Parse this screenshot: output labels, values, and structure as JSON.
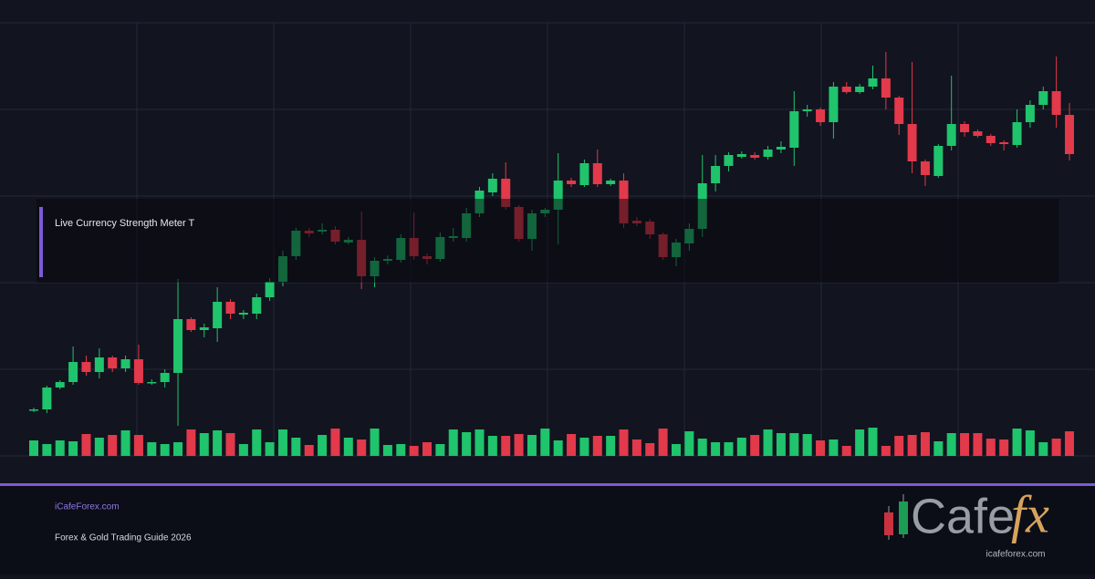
{
  "chart_data": {
    "type": "candlestick",
    "open": [
      50,
      51,
      75,
      81,
      103,
      92,
      108,
      96,
      106,
      80,
      81,
      91,
      150,
      138,
      140,
      169,
      155,
      156,
      174,
      191,
      219,
      247,
      246,
      248,
      234,
      237,
      197,
      214,
      215,
      239,
      219,
      216,
      239,
      239,
      266,
      289,
      304,
      273,
      238,
      266,
      270,
      302,
      297,
      321,
      298,
      302,
      258,
      257,
      243,
      218,
      233,
      249,
      299,
      318,
      328,
      330,
      328,
      336,
      338,
      378,
      380,
      366,
      405,
      399,
      405,
      414,
      393,
      364,
      323,
      307,
      340,
      364,
      356,
      351,
      344,
      341,
      366,
      385,
      400,
      374
    ],
    "high": [
      53,
      77,
      83,
      120,
      110,
      118,
      110,
      110,
      122,
      84,
      95,
      194,
      152,
      145,
      185,
      172,
      160,
      178,
      195,
      225,
      250,
      250,
      255,
      252,
      240,
      268,
      218,
      220,
      243,
      267,
      222,
      245,
      250,
      272,
      295,
      310,
      322,
      275,
      270,
      272,
      332,
      305,
      325,
      336,
      304,
      310,
      262,
      260,
      245,
      238,
      255,
      330,
      330,
      333,
      334,
      333,
      340,
      345,
      400,
      385,
      382,
      410,
      410,
      408,
      428,
      443,
      395,
      432,
      325,
      342,
      417,
      367,
      358,
      353,
      346,
      380,
      390,
      405,
      438,
      387
    ],
    "low": [
      48,
      47,
      73,
      78,
      88,
      85,
      92,
      92,
      78,
      78,
      75,
      33,
      136,
      130,
      125,
      150,
      150,
      150,
      170,
      186,
      215,
      240,
      243,
      232,
      232,
      183,
      185,
      210,
      212,
      215,
      210,
      213,
      235,
      235,
      262,
      285,
      270,
      235,
      225,
      262,
      232,
      295,
      295,
      295,
      296,
      250,
      252,
      238,
      215,
      208,
      225,
      240,
      290,
      312,
      326,
      325,
      325,
      332,
      318,
      372,
      362,
      348,
      397,
      397,
      402,
      380,
      352,
      310,
      296,
      305,
      335,
      350,
      349,
      340,
      335,
      338,
      360,
      380,
      360,
      324
    ],
    "close": [
      51,
      75,
      81,
      103,
      92,
      108,
      96,
      106,
      80,
      81,
      91,
      150,
      138,
      141,
      169,
      156,
      157,
      174,
      191,
      219,
      247,
      244,
      248,
      235,
      237,
      197,
      214,
      216,
      239,
      219,
      216,
      240,
      241,
      266,
      291,
      304,
      273,
      238,
      266,
      270,
      302,
      298,
      321,
      298,
      302,
      255,
      255,
      243,
      218,
      234,
      249,
      299,
      318,
      330,
      331,
      327,
      336,
      339,
      378,
      380,
      366,
      405,
      399,
      405,
      414,
      393,
      364,
      323,
      308,
      340,
      364,
      355,
      351,
      343,
      342,
      366,
      385,
      400,
      374,
      331
    ],
    "volume": [
      17,
      13,
      17,
      16,
      24,
      20,
      23,
      28,
      23,
      15,
      13,
      15,
      29,
      25,
      28,
      25,
      13,
      29,
      15,
      29,
      20,
      12,
      23,
      30,
      20,
      18,
      30,
      12,
      13,
      11,
      15,
      13,
      29,
      26,
      29,
      22,
      22,
      24,
      23,
      30,
      17,
      24,
      20,
      22,
      22,
      29,
      18,
      14,
      30,
      13,
      27,
      19,
      15,
      15,
      20,
      23,
      29,
      25,
      25,
      24,
      17,
      18,
      11,
      29,
      31,
      11,
      22,
      23,
      26,
      16,
      25,
      25,
      25,
      19,
      18,
      30,
      28,
      15,
      19,
      27
    ],
    "ylim": [
      0,
      475
    ],
    "y2lim": [
      0,
      100
    ],
    "up_color": "#1fc46c",
    "down_color": "#e2394b"
  },
  "overlay": {
    "title": "Live Currency Strength Meter T"
  },
  "footer": {
    "site": "iCafeForex.com",
    "subtitle": "Forex & Gold Trading Guide 2026"
  },
  "logo": {
    "text": "Cafe",
    "accent": "fx",
    "url": "icafeforex.com"
  }
}
